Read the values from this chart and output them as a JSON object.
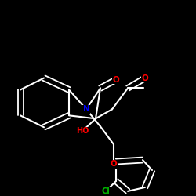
{
  "background_color": "#000000",
  "bond_color": "#ffffff",
  "atom_colors": {
    "O": "#ff0000",
    "N": "#0000ff",
    "Cl": "#00bb00",
    "C": "#ffffff"
  },
  "figsize": [
    2.5,
    2.5
  ],
  "dpi": 100
}
